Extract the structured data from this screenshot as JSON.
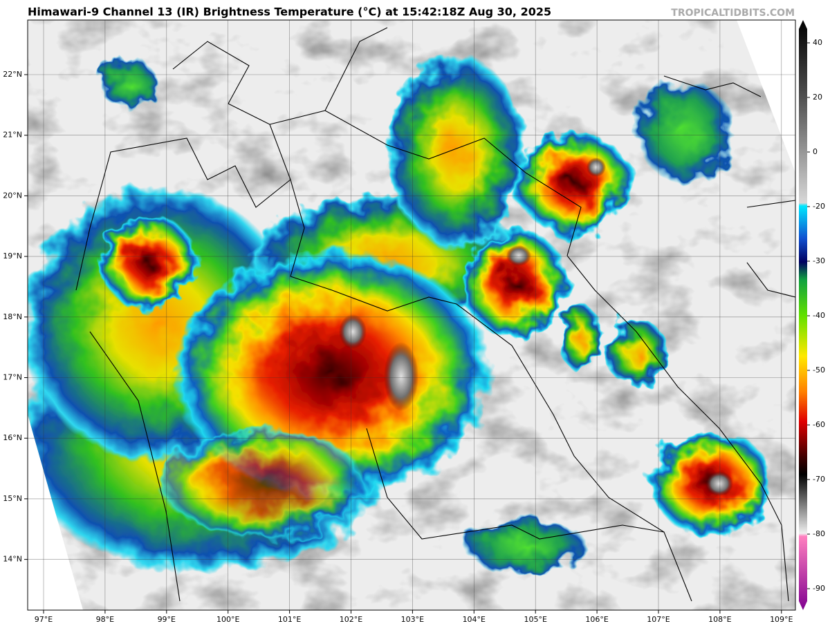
{
  "header": {
    "title": "Himawari-9 Channel 13 (IR) Brightness Temperature (°C) at 15:42:18Z Aug 30, 2025",
    "watermark": "TROPICALTIDBITS.COM"
  },
  "map": {
    "longitude_labels": [
      "97°E",
      "98°E",
      "99°E",
      "100°E",
      "101°E",
      "102°E",
      "103°E",
      "104°E",
      "105°E",
      "106°E",
      "107°E",
      "108°E",
      "109°E"
    ],
    "latitude_labels": [
      "22°N",
      "21°N",
      "20°N",
      "19°N",
      "18°N",
      "17°N",
      "16°N",
      "15°N",
      "14°N"
    ]
  },
  "colorbar": {
    "labels": [
      "40",
      "20",
      "0",
      "-20",
      "-30",
      "-40",
      "-50",
      "-60",
      "-70",
      "-80",
      "-90"
    ]
  }
}
